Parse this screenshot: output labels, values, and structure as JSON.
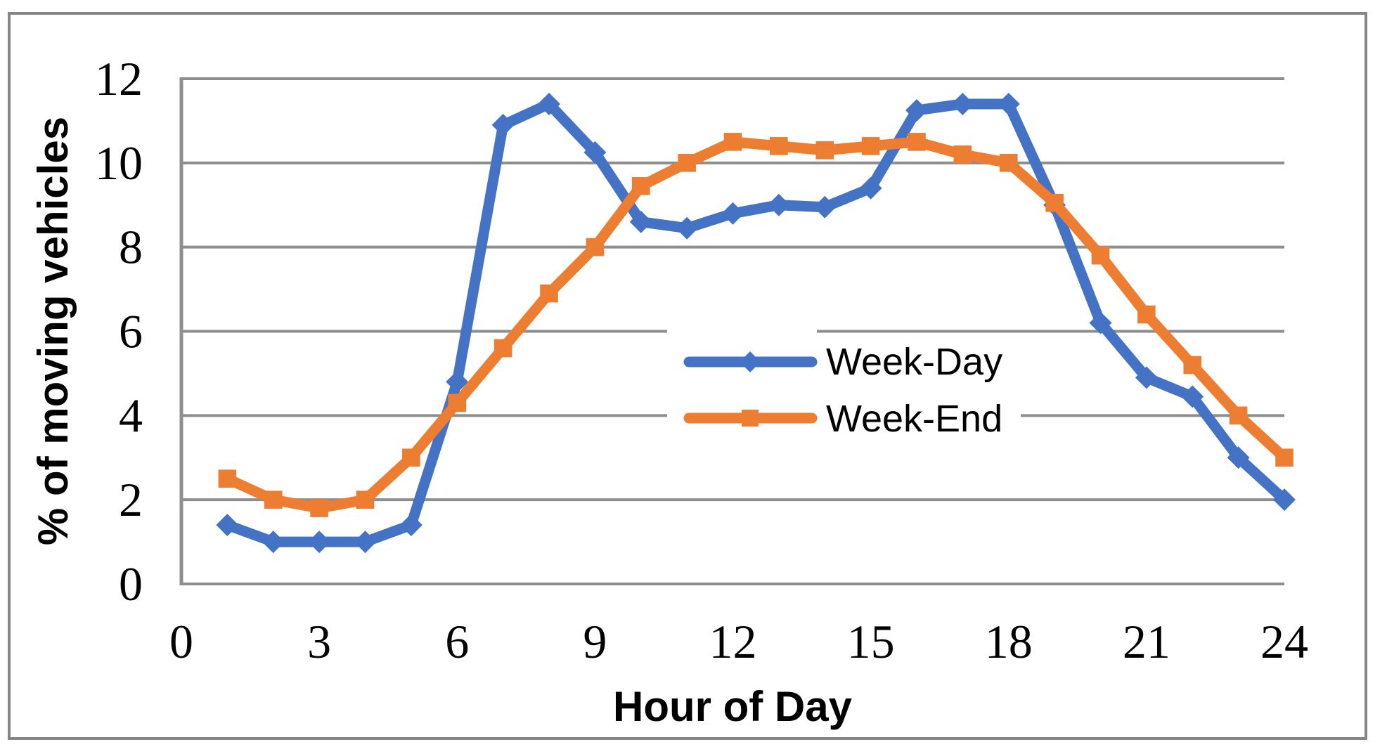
{
  "chart_data": {
    "type": "line",
    "title": "",
    "xlabel": "Hour of Day",
    "ylabel": "% of moving vehicles",
    "xlim": [
      0,
      24
    ],
    "ylim": [
      0,
      12
    ],
    "xticks": [
      0,
      3,
      6,
      9,
      12,
      15,
      18,
      21,
      24
    ],
    "yticks": [
      0,
      2,
      4,
      6,
      8,
      10,
      12
    ],
    "grid": "horizontal-major",
    "legend_position": "inside-center-right",
    "x": [
      1,
      2,
      3,
      4,
      5,
      6,
      7,
      8,
      9,
      10,
      11,
      12,
      13,
      14,
      15,
      16,
      17,
      18,
      19,
      20,
      21,
      22,
      23,
      24
    ],
    "series": [
      {
        "name": "Week-Day",
        "color": "#4472C4",
        "marker": "diamond",
        "values": [
          1.4,
          1.0,
          1.0,
          1.0,
          1.4,
          4.8,
          10.9,
          11.4,
          10.25,
          8.6,
          8.45,
          8.8,
          9.0,
          8.95,
          9.4,
          11.25,
          11.4,
          11.4,
          9.0,
          6.2,
          4.9,
          4.45,
          3.0,
          2.0
        ]
      },
      {
        "name": "Week-End",
        "color": "#ED7D31",
        "marker": "square",
        "values": [
          2.5,
          2.0,
          1.8,
          2.0,
          3.0,
          4.3,
          5.6,
          6.9,
          8.0,
          9.45,
          10.0,
          10.5,
          10.4,
          10.3,
          10.4,
          10.5,
          10.2,
          10.0,
          9.05,
          7.8,
          6.4,
          5.2,
          4.0,
          3.0
        ]
      }
    ]
  },
  "colors": {
    "gridline": "#8E8E8E",
    "axis": "#8E8E8E",
    "frame": "#868686",
    "background": "#FFFFFF",
    "text": "#000000"
  }
}
